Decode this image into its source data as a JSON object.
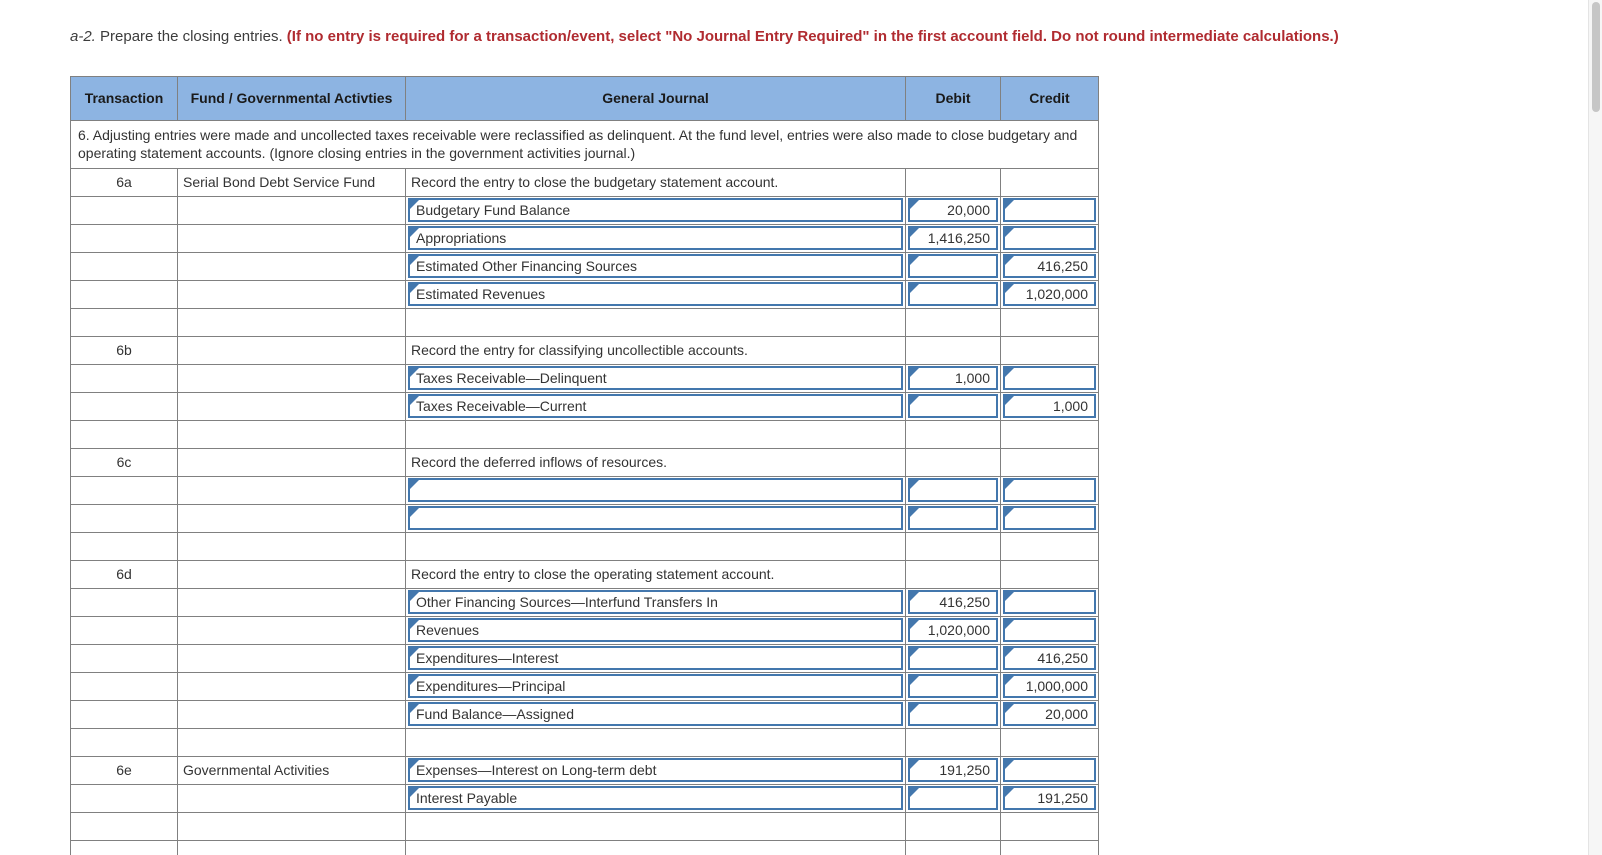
{
  "colors": {
    "header_blue": "#8DB4E2",
    "input_border_blue": "#4377AD",
    "instruction_red": "#B02B30",
    "grid_gray": "#808080"
  },
  "instructions": {
    "prefix": "a-2.",
    "normal": " Prepare the closing entries. ",
    "bold_red": "(If no entry is required for a transaction/event, select \"No Journal Entry Required\" in the first account field. Do not round intermediate calculations.)"
  },
  "table": {
    "headers": {
      "transaction": "Transaction",
      "fund": "Fund / Governmental Activties",
      "journal": "General Journal",
      "debit": "Debit",
      "credit": "Credit"
    },
    "note": "6. Adjusting entries were made and uncollected taxes receivable were reclassified as delinquent. At the fund level, entries were also made to close budgetary and operating statement accounts. (Ignore closing entries in the government activities journal.)",
    "rows": [
      {
        "txn": "6a",
        "fund": "Serial Bond Debt Service Fund",
        "j": "label",
        "jt": "Record the entry to close the budgetary statement account.",
        "d": null,
        "c": null
      },
      {
        "j": "account",
        "jt": "Budgetary Fund Balance",
        "d": "20,000",
        "c": ""
      },
      {
        "j": "account",
        "jt": "Appropriations",
        "d": "1,416,250",
        "c": ""
      },
      {
        "j": "account",
        "jt": "Estimated Other Financing Sources",
        "d": "",
        "c": "416,250"
      },
      {
        "j": "account",
        "jt": "Estimated Revenues",
        "d": "",
        "c": "1,020,000"
      },
      {
        "j": "blank",
        "d": null,
        "c": null
      },
      {
        "txn": "6b",
        "j": "label",
        "jt": "Record the entry for classifying uncollectible accounts.",
        "d": null,
        "c": null
      },
      {
        "j": "account",
        "jt": "Taxes Receivable—Delinquent",
        "d": "1,000",
        "c": ""
      },
      {
        "j": "account",
        "jt": "Taxes Receivable—Current",
        "d": "",
        "c": "1,000"
      },
      {
        "j": "blank",
        "d": null,
        "c": null
      },
      {
        "txn": "6c",
        "j": "label",
        "jt": "Record the deferred inflows of resources.",
        "d": null,
        "c": null
      },
      {
        "j": "account",
        "jt": "",
        "d": "",
        "c": ""
      },
      {
        "j": "account",
        "jt": "",
        "d": "",
        "c": ""
      },
      {
        "j": "blank",
        "d": null,
        "c": null
      },
      {
        "txn": "6d",
        "j": "label",
        "jt": "Record the entry to close the operating statement account.",
        "d": null,
        "c": null
      },
      {
        "j": "account",
        "jt": "Other Financing Sources—Interfund Transfers In",
        "d": "416,250",
        "c": ""
      },
      {
        "j": "account",
        "jt": "Revenues",
        "d": "1,020,000",
        "c": ""
      },
      {
        "j": "account",
        "jt": "Expenditures—Interest",
        "d": "",
        "c": "416,250"
      },
      {
        "j": "account",
        "jt": "Expenditures—Principal",
        "d": "",
        "c": "1,000,000"
      },
      {
        "j": "account",
        "jt": "Fund Balance—Assigned",
        "d": "",
        "c": "20,000"
      },
      {
        "j": "blank",
        "d": null,
        "c": null
      },
      {
        "txn": "6e",
        "fund": "Governmental Activities",
        "j": "account",
        "jt": "Expenses—Interest on Long-term debt",
        "d": "191,250",
        "c": ""
      },
      {
        "j": "account",
        "jt": "Interest Payable",
        "d": "",
        "c": "191,250"
      },
      {
        "j": "blank",
        "d": null,
        "c": null
      },
      {
        "j": "blank",
        "d": null,
        "c": null
      }
    ]
  }
}
